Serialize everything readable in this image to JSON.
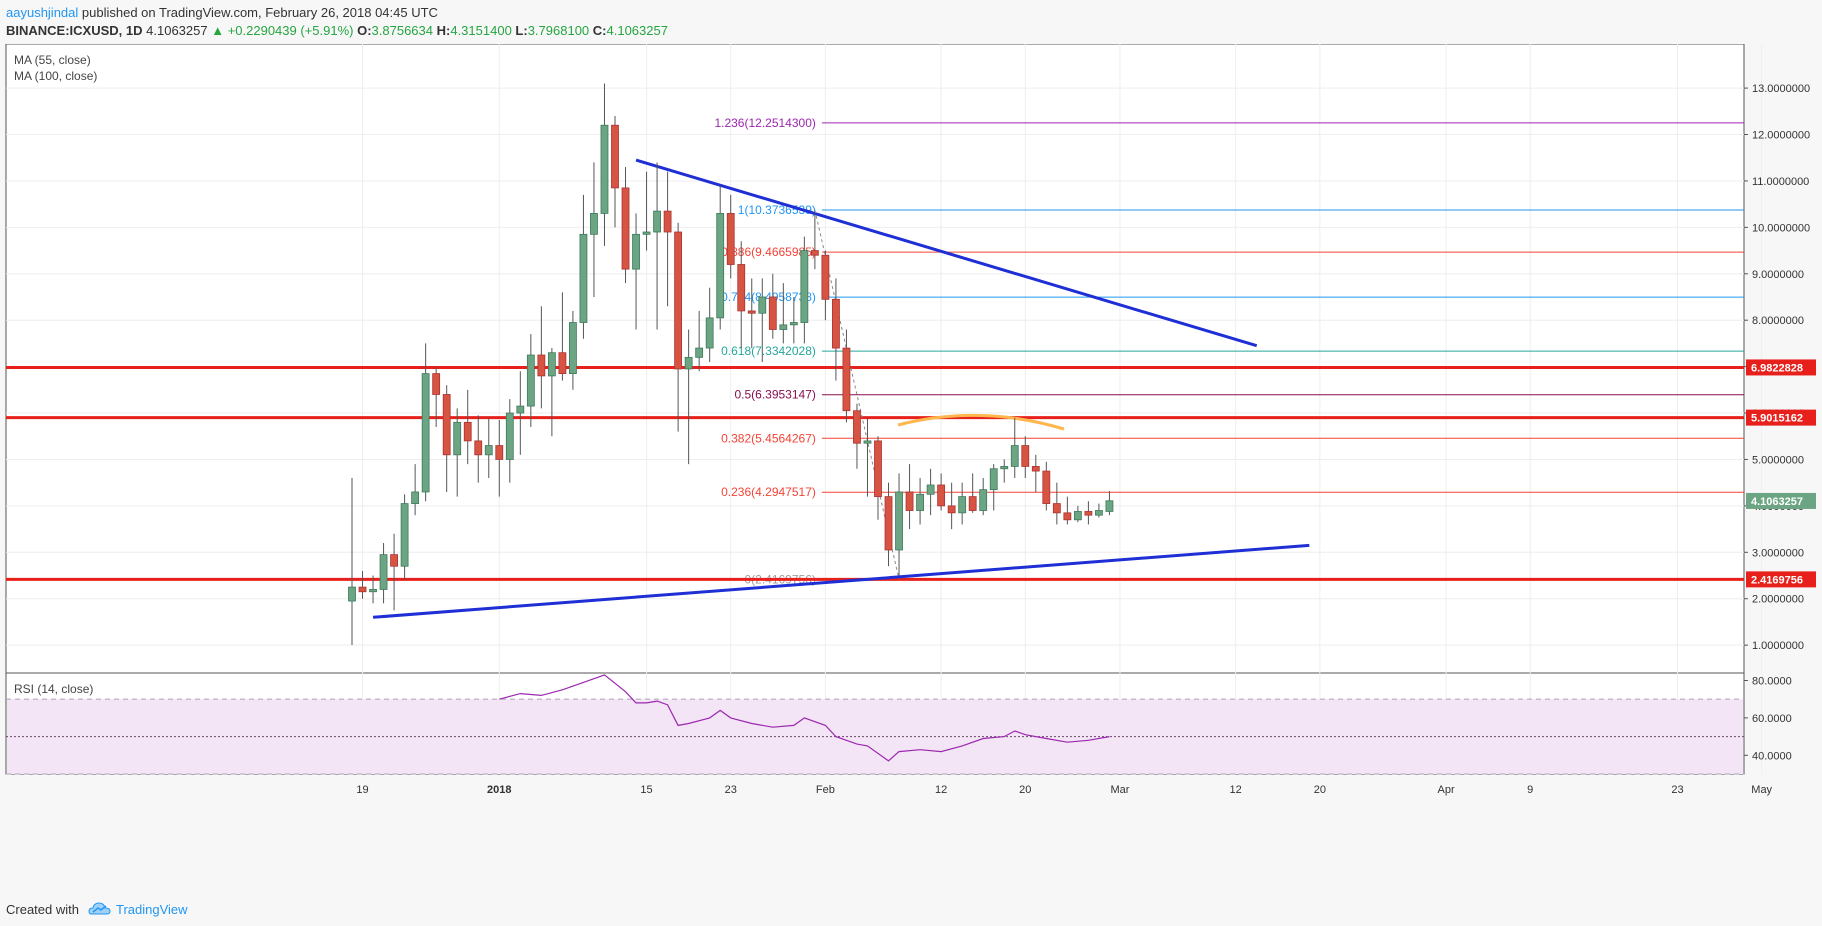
{
  "header": {
    "username": "aayushjindal",
    "published_text": "published on TradingView.com, February 26, 2018 04:45 UTC",
    "symbol": "BINANCE:ICXUSD, 1D",
    "last": "4.1063257",
    "change": "▲ +0.2290439 (+5.91%)",
    "o_label": "O:",
    "o_value": "3.8756634",
    "h_label": "H:",
    "h_value": "4.3151400",
    "l_label": "L:",
    "l_value": "3.7968100",
    "c_label": "C:",
    "c_value": "4.1063257"
  },
  "indicators": {
    "ma55": "MA (55, close)",
    "ma100": "MA (100, close)",
    "rsi": "RSI (14, close)"
  },
  "footer": {
    "created_with": "Created with",
    "brand": "TradingView"
  },
  "colors": {
    "up": "#6ba583",
    "down": "#d75442",
    "trendline": "#1f2fd6",
    "level": "#e8201b",
    "rsi_line": "#9c27b0",
    "rsi_band": "#f3e5f5"
  },
  "chart_data": {
    "type": "candlestick",
    "price_axis": {
      "ticks": [
        "1.0000000",
        "2.0000000",
        "3.0000000",
        "4.0000000",
        "5.0000000",
        "6.0000000",
        "7.0000000",
        "8.0000000",
        "9.0000000",
        "10.0000000",
        "11.0000000",
        "12.0000000",
        "13.0000000"
      ],
      "tick_values": [
        1,
        2,
        3,
        4,
        5,
        6,
        7,
        8,
        9,
        10,
        11,
        12,
        13
      ],
      "range": [
        0.4,
        13.95
      ]
    },
    "time_axis": {
      "labels": [
        "19",
        "2018",
        "15",
        "23",
        "Feb",
        "12",
        "20",
        "Mar",
        "12",
        "20",
        "Apr",
        "9",
        "23",
        "May"
      ],
      "label_dates": [
        "2017-12-19",
        "2018-01-01",
        "2018-01-15",
        "2018-01-23",
        "2018-02-01",
        "2018-02-12",
        "2018-02-20",
        "2018-03-01",
        "2018-03-12",
        "2018-03-20",
        "2018-04-01",
        "2018-04-09",
        "2018-04-23",
        "2018-05-01"
      ]
    },
    "candles": [
      {
        "date": "2017-12-18",
        "o": 1.95,
        "h": 4.6,
        "l": 1.0,
        "c": 2.25
      },
      {
        "date": "2017-12-19",
        "o": 2.25,
        "h": 2.6,
        "l": 2.0,
        "c": 2.15
      },
      {
        "date": "2017-12-20",
        "o": 2.15,
        "h": 2.5,
        "l": 1.9,
        "c": 2.2
      },
      {
        "date": "2017-12-21",
        "o": 2.2,
        "h": 3.2,
        "l": 1.9,
        "c": 2.95
      },
      {
        "date": "2017-12-22",
        "o": 2.95,
        "h": 3.4,
        "l": 1.75,
        "c": 2.7
      },
      {
        "date": "2017-12-23",
        "o": 2.7,
        "h": 4.25,
        "l": 2.4,
        "c": 4.05
      },
      {
        "date": "2017-12-24",
        "o": 4.05,
        "h": 4.9,
        "l": 3.8,
        "c": 4.3
      },
      {
        "date": "2017-12-25",
        "o": 4.3,
        "h": 7.5,
        "l": 4.1,
        "c": 6.85
      },
      {
        "date": "2017-12-26",
        "o": 6.85,
        "h": 7.0,
        "l": 5.7,
        "c": 6.4
      },
      {
        "date": "2017-12-27",
        "o": 6.4,
        "h": 6.6,
        "l": 4.3,
        "c": 5.1
      },
      {
        "date": "2017-12-28",
        "o": 5.1,
        "h": 6.1,
        "l": 4.2,
        "c": 5.8
      },
      {
        "date": "2017-12-29",
        "o": 5.8,
        "h": 6.5,
        "l": 4.9,
        "c": 5.4
      },
      {
        "date": "2017-12-30",
        "o": 5.4,
        "h": 5.95,
        "l": 4.5,
        "c": 5.1
      },
      {
        "date": "2017-12-31",
        "o": 5.1,
        "h": 5.9,
        "l": 4.6,
        "c": 5.3
      },
      {
        "date": "2018-01-01",
        "o": 5.3,
        "h": 5.85,
        "l": 4.2,
        "c": 5.0
      },
      {
        "date": "2018-01-02",
        "o": 5.0,
        "h": 6.3,
        "l": 4.5,
        "c": 6.0
      },
      {
        "date": "2018-01-03",
        "o": 6.0,
        "h": 6.9,
        "l": 5.1,
        "c": 6.15
      },
      {
        "date": "2018-01-04",
        "o": 6.15,
        "h": 7.7,
        "l": 5.7,
        "c": 7.25
      },
      {
        "date": "2018-01-05",
        "o": 7.25,
        "h": 8.3,
        "l": 6.1,
        "c": 6.8
      },
      {
        "date": "2018-01-06",
        "o": 6.8,
        "h": 7.4,
        "l": 5.5,
        "c": 7.3
      },
      {
        "date": "2018-01-07",
        "o": 7.3,
        "h": 8.6,
        "l": 6.7,
        "c": 6.85
      },
      {
        "date": "2018-01-08",
        "o": 6.85,
        "h": 8.2,
        "l": 6.5,
        "c": 7.95
      },
      {
        "date": "2018-01-09",
        "o": 7.95,
        "h": 10.7,
        "l": 7.6,
        "c": 9.85
      },
      {
        "date": "2018-01-10",
        "o": 9.85,
        "h": 11.4,
        "l": 8.5,
        "c": 10.3
      },
      {
        "date": "2018-01-11",
        "o": 10.3,
        "h": 13.1,
        "l": 9.6,
        "c": 12.2
      },
      {
        "date": "2018-01-12",
        "o": 12.2,
        "h": 12.4,
        "l": 10.0,
        "c": 10.85
      },
      {
        "date": "2018-01-13",
        "o": 10.85,
        "h": 11.3,
        "l": 8.8,
        "c": 9.1
      },
      {
        "date": "2018-01-14",
        "o": 9.1,
        "h": 10.3,
        "l": 7.8,
        "c": 9.85
      },
      {
        "date": "2018-01-15",
        "o": 9.85,
        "h": 11.2,
        "l": 9.5,
        "c": 9.9
      },
      {
        "date": "2018-01-16",
        "o": 9.9,
        "h": 11.4,
        "l": 7.8,
        "c": 10.35
      },
      {
        "date": "2018-01-17",
        "o": 10.35,
        "h": 11.2,
        "l": 8.3,
        "c": 9.9
      },
      {
        "date": "2018-01-18",
        "o": 9.9,
        "h": 10.1,
        "l": 5.6,
        "c": 6.95
      },
      {
        "date": "2018-01-19",
        "o": 6.95,
        "h": 7.8,
        "l": 4.9,
        "c": 7.2
      },
      {
        "date": "2018-01-20",
        "o": 7.2,
        "h": 8.2,
        "l": 6.9,
        "c": 7.4
      },
      {
        "date": "2018-01-21",
        "o": 7.4,
        "h": 8.7,
        "l": 7.1,
        "c": 8.05
      },
      {
        "date": "2018-01-22",
        "o": 8.05,
        "h": 10.9,
        "l": 7.8,
        "c": 10.3
      },
      {
        "date": "2018-01-23",
        "o": 10.3,
        "h": 10.7,
        "l": 8.9,
        "c": 9.2
      },
      {
        "date": "2018-01-24",
        "o": 9.2,
        "h": 9.7,
        "l": 7.4,
        "c": 8.2
      },
      {
        "date": "2018-01-25",
        "o": 8.2,
        "h": 8.9,
        "l": 7.4,
        "c": 8.15
      },
      {
        "date": "2018-01-26",
        "o": 8.15,
        "h": 8.9,
        "l": 7.1,
        "c": 8.5
      },
      {
        "date": "2018-01-27",
        "o": 8.5,
        "h": 9.0,
        "l": 7.6,
        "c": 7.8
      },
      {
        "date": "2018-01-28",
        "o": 7.8,
        "h": 8.8,
        "l": 7.5,
        "c": 7.9
      },
      {
        "date": "2018-01-29",
        "o": 7.9,
        "h": 8.5,
        "l": 7.5,
        "c": 7.95
      },
      {
        "date": "2018-01-30",
        "o": 7.95,
        "h": 9.8,
        "l": 7.5,
        "c": 9.5
      },
      {
        "date": "2018-01-31",
        "o": 9.5,
        "h": 10.3,
        "l": 9.1,
        "c": 9.4
      },
      {
        "date": "2018-02-01",
        "o": 9.4,
        "h": 9.5,
        "l": 8.0,
        "c": 8.45
      },
      {
        "date": "2018-02-02",
        "o": 8.45,
        "h": 8.9,
        "l": 6.7,
        "c": 7.4
      },
      {
        "date": "2018-02-03",
        "o": 7.4,
        "h": 7.8,
        "l": 5.8,
        "c": 6.05
      },
      {
        "date": "2018-02-04",
        "o": 6.05,
        "h": 6.2,
        "l": 4.8,
        "c": 5.35
      },
      {
        "date": "2018-02-05",
        "o": 5.35,
        "h": 5.9,
        "l": 4.2,
        "c": 5.4
      },
      {
        "date": "2018-02-06",
        "o": 5.4,
        "h": 5.5,
        "l": 3.7,
        "c": 4.2
      },
      {
        "date": "2018-02-07",
        "o": 4.2,
        "h": 4.5,
        "l": 2.7,
        "c": 3.05
      },
      {
        "date": "2018-02-08",
        "o": 3.05,
        "h": 4.7,
        "l": 2.5,
        "c": 4.3
      },
      {
        "date": "2018-02-09",
        "o": 4.3,
        "h": 4.9,
        "l": 3.5,
        "c": 3.9
      },
      {
        "date": "2018-02-10",
        "o": 3.9,
        "h": 4.6,
        "l": 3.6,
        "c": 4.25
      },
      {
        "date": "2018-02-11",
        "o": 4.25,
        "h": 4.8,
        "l": 3.8,
        "c": 4.45
      },
      {
        "date": "2018-02-12",
        "o": 4.45,
        "h": 4.7,
        "l": 3.9,
        "c": 4.0
      },
      {
        "date": "2018-02-13",
        "o": 4.0,
        "h": 4.5,
        "l": 3.5,
        "c": 3.85
      },
      {
        "date": "2018-02-14",
        "o": 3.85,
        "h": 4.5,
        "l": 3.6,
        "c": 4.2
      },
      {
        "date": "2018-02-15",
        "o": 4.2,
        "h": 4.7,
        "l": 3.85,
        "c": 3.9
      },
      {
        "date": "2018-02-16",
        "o": 3.9,
        "h": 4.6,
        "l": 3.8,
        "c": 4.35
      },
      {
        "date": "2018-02-17",
        "o": 4.35,
        "h": 4.9,
        "l": 3.9,
        "c": 4.8
      },
      {
        "date": "2018-02-18",
        "o": 4.8,
        "h": 5.0,
        "l": 4.5,
        "c": 4.85
      },
      {
        "date": "2018-02-19",
        "o": 4.85,
        "h": 5.9,
        "l": 4.6,
        "c": 5.3
      },
      {
        "date": "2018-02-20",
        "o": 5.3,
        "h": 5.5,
        "l": 4.6,
        "c": 4.85
      },
      {
        "date": "2018-02-21",
        "o": 4.85,
        "h": 5.1,
        "l": 4.3,
        "c": 4.75
      },
      {
        "date": "2018-02-22",
        "o": 4.75,
        "h": 4.95,
        "l": 3.9,
        "c": 4.05
      },
      {
        "date": "2018-02-23",
        "o": 4.05,
        "h": 4.5,
        "l": 3.6,
        "c": 3.85
      },
      {
        "date": "2018-02-24",
        "o": 3.85,
        "h": 4.2,
        "l": 3.6,
        "c": 3.7
      },
      {
        "date": "2018-02-25",
        "o": 3.7,
        "h": 4.0,
        "l": 3.65,
        "c": 3.88
      },
      {
        "date": "2018-02-26",
        "o": 3.88,
        "h": 4.1,
        "l": 3.6,
        "c": 3.8
      },
      {
        "date": "2018-02-27",
        "o": 3.8,
        "h": 4.05,
        "l": 3.75,
        "c": 3.9
      },
      {
        "date": "2018-02-28",
        "o": 3.88,
        "h": 4.32,
        "l": 3.8,
        "c": 4.11
      }
    ],
    "fibonacci": [
      {
        "label": "1.236(12.2514300)",
        "value": 12.25143,
        "color": "#9c27b0"
      },
      {
        "label": "1(10.3736539)",
        "value": 10.3736539,
        "color": "#2196f3"
      },
      {
        "label": "0.886(9.4665985)",
        "value": 9.4665985,
        "color": "#f44336"
      },
      {
        "label": "0.764(8.4958738)",
        "value": 8.4958738,
        "color": "#2196f3"
      },
      {
        "label": "0.618(7.3342028)",
        "value": 7.3342028,
        "color": "#26a69a"
      },
      {
        "label": "0.5(6.3953147)",
        "value": 6.3953147,
        "color": "#880e4f"
      },
      {
        "label": "0.382(5.4564267)",
        "value": 5.4564267,
        "color": "#f44336"
      },
      {
        "label": "0.236(4.2947517)",
        "value": 4.2947517,
        "color": "#f44336"
      },
      {
        "label": "0(2.4169756)",
        "value": 2.4169756,
        "color": "#9e9e9e"
      }
    ],
    "horizontal_levels": [
      {
        "label": "6.9822828",
        "value": 6.9822828
      },
      {
        "label": "5.9015162",
        "value": 5.9015162
      },
      {
        "label": "2.4169756",
        "value": 2.4169756
      }
    ],
    "last_price_label": "4.1063257",
    "last_price": 4.1063257,
    "trendlines": [
      {
        "from": {
          "date": "2018-01-14",
          "price": 11.45
        },
        "to": {
          "date": "2018-03-14",
          "price": 7.45
        }
      },
      {
        "from": {
          "date": "2017-12-20",
          "price": 1.6
        },
        "to": {
          "date": "2018-03-19",
          "price": 3.15
        }
      }
    ],
    "rsi": {
      "ticks": [
        "40.0000",
        "60.0000",
        "80.0000"
      ],
      "tick_values": [
        40,
        60,
        80
      ],
      "range": [
        30,
        84
      ],
      "band": [
        30,
        70
      ],
      "mid": 50,
      "values": [
        {
          "date": "2018-01-01",
          "v": 70
        },
        {
          "date": "2018-01-03",
          "v": 73
        },
        {
          "date": "2018-01-05",
          "v": 72
        },
        {
          "date": "2018-01-07",
          "v": 75
        },
        {
          "date": "2018-01-09",
          "v": 79
        },
        {
          "date": "2018-01-11",
          "v": 83
        },
        {
          "date": "2018-01-13",
          "v": 74
        },
        {
          "date": "2018-01-14",
          "v": 68
        },
        {
          "date": "2018-01-15",
          "v": 68
        },
        {
          "date": "2018-01-16",
          "v": 69
        },
        {
          "date": "2018-01-17",
          "v": 67
        },
        {
          "date": "2018-01-18",
          "v": 56
        },
        {
          "date": "2018-01-19",
          "v": 57
        },
        {
          "date": "2018-01-21",
          "v": 60
        },
        {
          "date": "2018-01-22",
          "v": 64
        },
        {
          "date": "2018-01-23",
          "v": 60
        },
        {
          "date": "2018-01-25",
          "v": 57
        },
        {
          "date": "2018-01-27",
          "v": 55
        },
        {
          "date": "2018-01-29",
          "v": 56
        },
        {
          "date": "2018-01-30",
          "v": 60
        },
        {
          "date": "2018-02-01",
          "v": 56
        },
        {
          "date": "2018-02-02",
          "v": 50
        },
        {
          "date": "2018-02-04",
          "v": 46
        },
        {
          "date": "2018-02-05",
          "v": 45
        },
        {
          "date": "2018-02-07",
          "v": 37
        },
        {
          "date": "2018-02-08",
          "v": 42
        },
        {
          "date": "2018-02-10",
          "v": 43
        },
        {
          "date": "2018-02-12",
          "v": 42
        },
        {
          "date": "2018-02-14",
          "v": 45
        },
        {
          "date": "2018-02-16",
          "v": 49
        },
        {
          "date": "2018-02-18",
          "v": 50
        },
        {
          "date": "2018-02-19",
          "v": 53
        },
        {
          "date": "2018-02-20",
          "v": 51
        },
        {
          "date": "2018-02-22",
          "v": 49
        },
        {
          "date": "2018-02-24",
          "v": 47
        },
        {
          "date": "2018-02-26",
          "v": 48
        },
        {
          "date": "2018-02-28",
          "v": 50
        }
      ]
    }
  }
}
